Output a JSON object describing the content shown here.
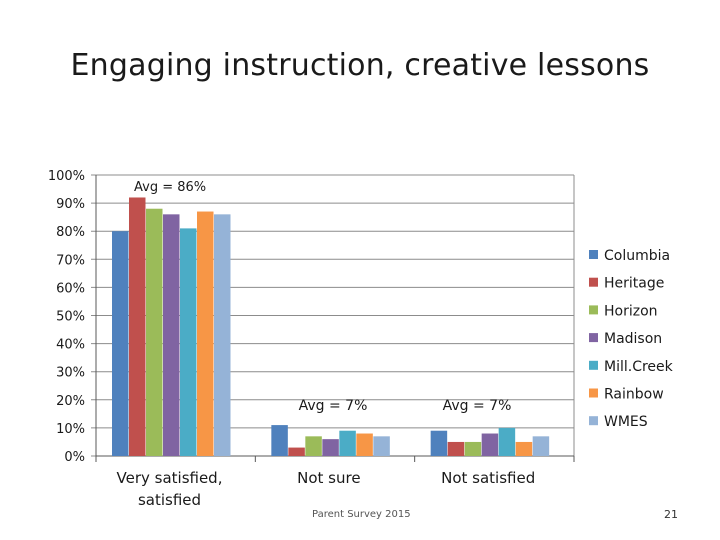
{
  "slide": {
    "title": "Engaging instruction, creative lessons",
    "footer": "Parent Survey 2015",
    "page_number": "21"
  },
  "chart_data": {
    "type": "bar",
    "categories": [
      "Very satisfied, satisfied",
      "Not sure",
      "Not satisfied"
    ],
    "category_lines": [
      [
        "Very satisfied,",
        "satisfied"
      ],
      [
        "Not sure"
      ],
      [
        "Not satisfied"
      ]
    ],
    "series": [
      {
        "name": "Columbia",
        "color": "#4f81bd",
        "values": [
          80,
          11,
          9
        ]
      },
      {
        "name": "Heritage",
        "color": "#c0504d",
        "values": [
          92,
          3,
          5
        ]
      },
      {
        "name": "Horizon",
        "color": "#9bbb59",
        "values": [
          88,
          7,
          5
        ]
      },
      {
        "name": "Madison",
        "color": "#8064a2",
        "values": [
          86,
          6,
          8
        ]
      },
      {
        "name": "Mill.Creek",
        "color": "#4bacc6",
        "values": [
          81,
          9,
          10
        ]
      },
      {
        "name": "Rainbow",
        "color": "#f79646",
        "values": [
          87,
          8,
          5
        ]
      },
      {
        "name": "WMES",
        "color": "#95b3d7",
        "values": [
          86,
          7,
          7
        ]
      }
    ],
    "annotations": [
      "Avg = 86%",
      "Avg = 7%",
      "Avg = 7%"
    ],
    "yticks": [
      "0%",
      "10%",
      "20%",
      "30%",
      "40%",
      "50%",
      "60%",
      "70%",
      "80%",
      "90%",
      "100%"
    ],
    "ylim": [
      0,
      100
    ],
    "grid": true,
    "legend_position": "right",
    "title": "Engaging instruction, creative lessons",
    "xlabel": "",
    "ylabel": ""
  }
}
